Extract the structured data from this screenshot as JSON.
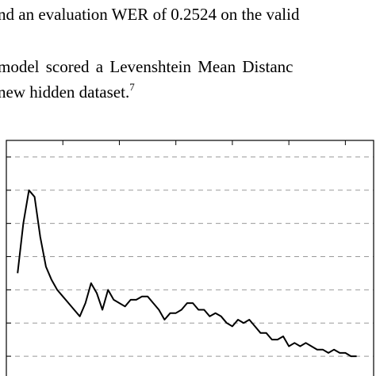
{
  "text": {
    "line1": "nd an evaluation WER of 0.2524 on the valid",
    "line2": " model scored a Levenshtein Mean Distanc",
    "line3_main": "new hidden dataset.",
    "line3_footnote": "7"
  },
  "chart_data": {
    "type": "line",
    "grid": true,
    "series": [
      {
        "values": [
          [
            2,
            0.45
          ],
          [
            3,
            0.6
          ],
          [
            4,
            0.7
          ],
          [
            5,
            0.68
          ],
          [
            6,
            0.56
          ],
          [
            7,
            0.47
          ],
          [
            8,
            0.43
          ],
          [
            9,
            0.4
          ],
          [
            10,
            0.38
          ],
          [
            11,
            0.36
          ],
          [
            12,
            0.34
          ],
          [
            13,
            0.32
          ],
          [
            14,
            0.36
          ],
          [
            15,
            0.42
          ],
          [
            16,
            0.39
          ],
          [
            17,
            0.34
          ],
          [
            18,
            0.4
          ],
          [
            19,
            0.37
          ],
          [
            20,
            0.36
          ],
          [
            21,
            0.35
          ],
          [
            22,
            0.37
          ],
          [
            23,
            0.37
          ],
          [
            24,
            0.38
          ],
          [
            25,
            0.38
          ],
          [
            26,
            0.36
          ],
          [
            27,
            0.34
          ],
          [
            28,
            0.31
          ],
          [
            29,
            0.33
          ],
          [
            30,
            0.33
          ],
          [
            31,
            0.34
          ],
          [
            32,
            0.36
          ],
          [
            33,
            0.36
          ],
          [
            34,
            0.34
          ],
          [
            35,
            0.34
          ],
          [
            36,
            0.32
          ],
          [
            37,
            0.33
          ],
          [
            38,
            0.32
          ],
          [
            39,
            0.3
          ],
          [
            40,
            0.29
          ],
          [
            41,
            0.31
          ],
          [
            42,
            0.3
          ],
          [
            43,
            0.31
          ],
          [
            44,
            0.29
          ],
          [
            45,
            0.27
          ],
          [
            46,
            0.27
          ],
          [
            47,
            0.25
          ],
          [
            48,
            0.25
          ],
          [
            49,
            0.26
          ],
          [
            50,
            0.23
          ],
          [
            51,
            0.24
          ],
          [
            52,
            0.23
          ],
          [
            53,
            0.24
          ],
          [
            54,
            0.23
          ],
          [
            55,
            0.22
          ],
          [
            56,
            0.22
          ],
          [
            57,
            0.21
          ],
          [
            58,
            0.22
          ],
          [
            59,
            0.21
          ],
          [
            60,
            0.21
          ],
          [
            61,
            0.2
          ],
          [
            62,
            0.2
          ]
        ]
      }
    ],
    "xlim": [
      0,
      65
    ],
    "ylim": [
      0.15,
      0.85
    ],
    "yticks": [
      0.2,
      0.3,
      0.4,
      0.5,
      0.6,
      0.7,
      0.8
    ],
    "line_color": "#000000",
    "grid_color": "#999999"
  }
}
